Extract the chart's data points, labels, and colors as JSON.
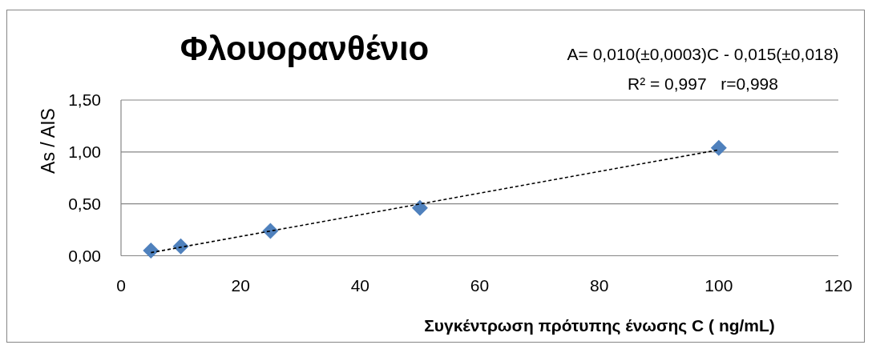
{
  "chart_data": {
    "type": "scatter",
    "title": "Φλουορανθένιο",
    "annotations": [
      "A= 0,010(±0,0003)C - 0,015(±0,018)",
      "R² = 0,997   r=0,998"
    ],
    "xlabel": "Συγκέντρωση πρότυπης ένωσης C ( ng/mL)",
    "ylabel": "As / AIS",
    "series": [
      {
        "color": "#4f81bd",
        "marker": "diamond",
        "x": [
          5,
          10,
          25,
          50,
          100
        ],
        "values": [
          0.05,
          0.09,
          0.24,
          0.46,
          1.04
        ]
      },
      {
        "type": "line",
        "color": "#000000",
        "line_style": "dashed",
        "marker": "none",
        "x": [
          5,
          100
        ],
        "values": [
          0.03,
          1.02
        ]
      }
    ],
    "xlim": [
      0,
      120
    ],
    "xticks": [
      0,
      20,
      40,
      60,
      80,
      100,
      120
    ],
    "ylim": [
      0,
      1.5
    ],
    "yticks": [
      {
        "value": 0,
        "label": "0,00"
      },
      {
        "value": 0.5,
        "label": "0,50"
      },
      {
        "value": 1,
        "label": "1,00"
      },
      {
        "value": 1.5,
        "label": "1,50"
      }
    ],
    "grid": "y"
  }
}
